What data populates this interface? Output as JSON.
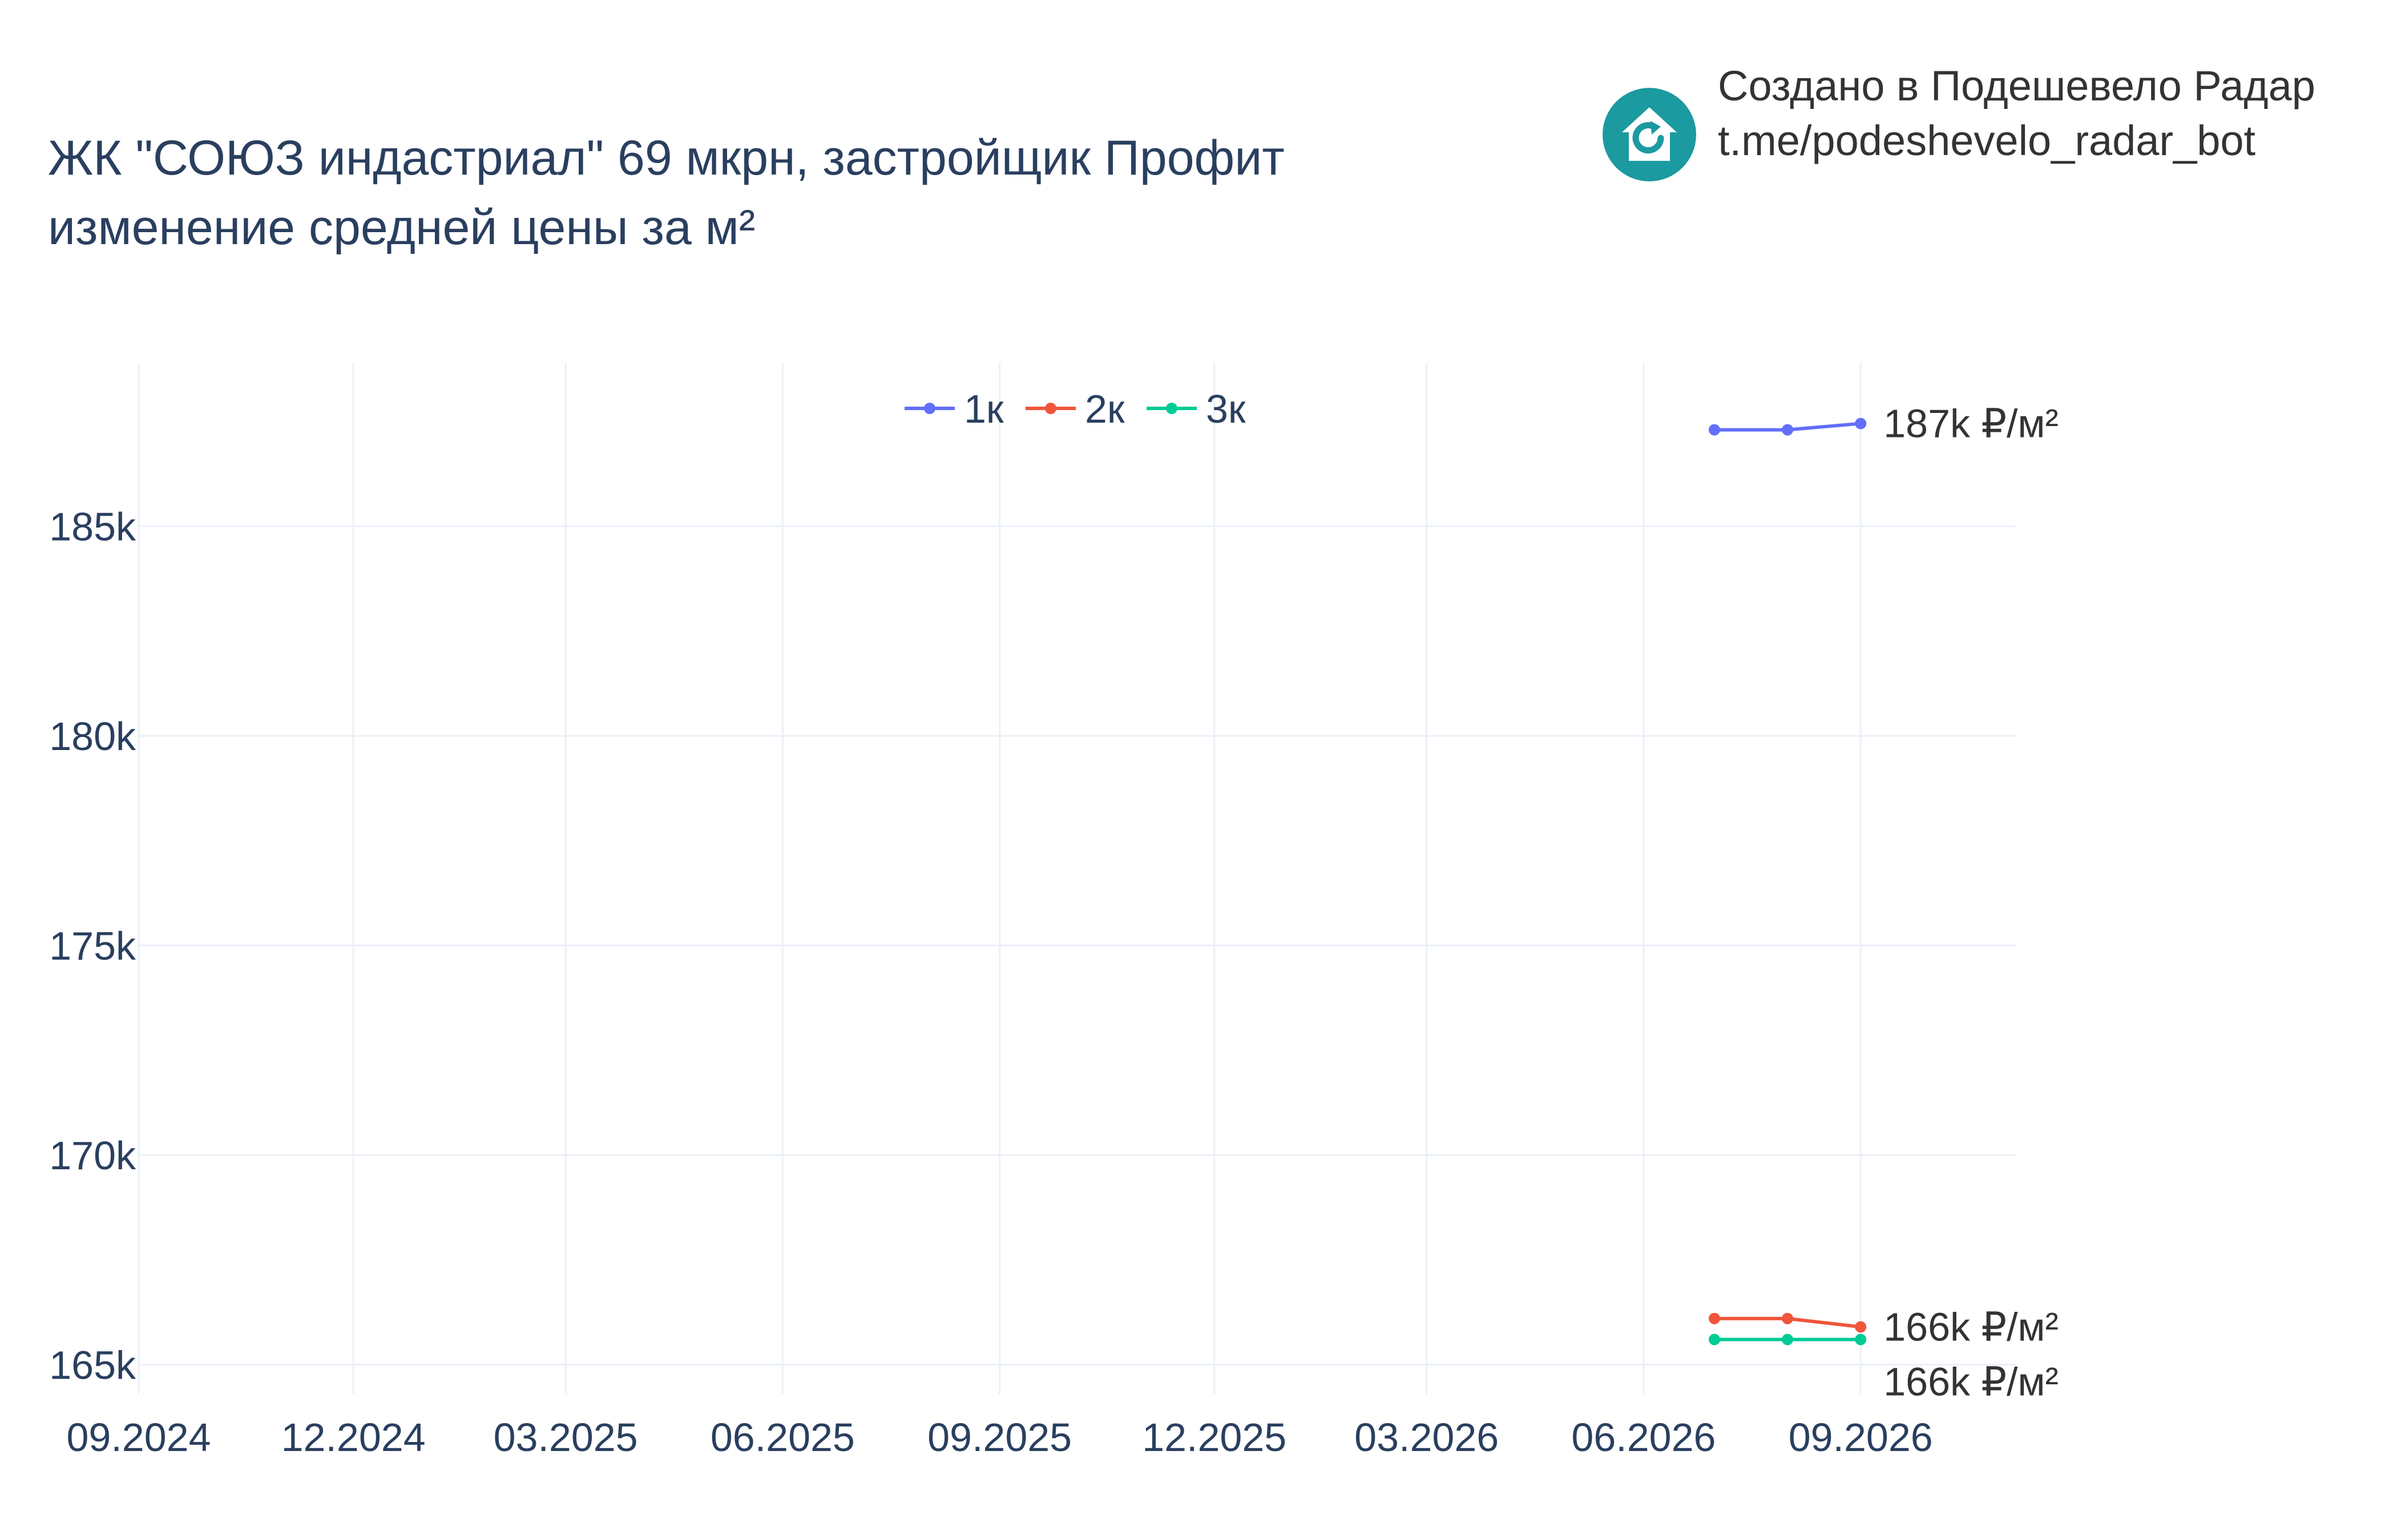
{
  "branding": {
    "line1": "Создано в Подешевело Радар",
    "line2": "t.me/podeshevelo_radar_bot",
    "logo_icon": "house-refresh-icon",
    "logo_color": "#1b9aa0"
  },
  "colors": {
    "title": "#2a3f5f",
    "axis_text": "#2a3f5f",
    "grid": "#ebf0f8",
    "annotation_text": "#333333"
  },
  "chart_data": {
    "type": "line",
    "title": "ЖК \"СОЮЗ индастриал\" 69 мкрн, застройщик Профит",
    "subtitle": "изменение средней цены за м²",
    "xlabel": "",
    "ylabel": "",
    "x_axis": {
      "type": "date",
      "range": [
        "2024-09-01",
        "2026-11-06"
      ],
      "tick_values": [
        "2024-09-01",
        "2024-12-01",
        "2025-03-01",
        "2025-06-01",
        "2025-09-01",
        "2025-12-01",
        "2026-03-01",
        "2026-06-01",
        "2026-09-01"
      ],
      "tick_labels": [
        "09.2024",
        "12.2024",
        "03.2025",
        "06.2025",
        "09.2025",
        "12.2025",
        "03.2026",
        "06.2026",
        "09.2026"
      ]
    },
    "y_axis": {
      "range": [
        164300,
        188900
      ],
      "tick_values": [
        165000,
        170000,
        175000,
        180000,
        185000
      ],
      "tick_labels": [
        "165k",
        "170k",
        "175k",
        "180k",
        "185k"
      ]
    },
    "grid": true,
    "legend": {
      "position": "top-center",
      "orientation": "horizontal"
    },
    "x": [
      "2026-07-01",
      "2026-08-01",
      "2026-09-01"
    ],
    "series": [
      {
        "name": "1к",
        "color": "#636efa",
        "values": [
          187300,
          187300,
          187450
        ],
        "end_label": "187k ₽/м²"
      },
      {
        "name": "2к",
        "color": "#ef553b",
        "values": [
          166100,
          166100,
          165900
        ],
        "end_label": "166k ₽/м²"
      },
      {
        "name": "3к",
        "color": "#00cc96",
        "values": [
          165600,
          165600,
          165600
        ],
        "end_label": "166k ₽/м²"
      }
    ]
  }
}
